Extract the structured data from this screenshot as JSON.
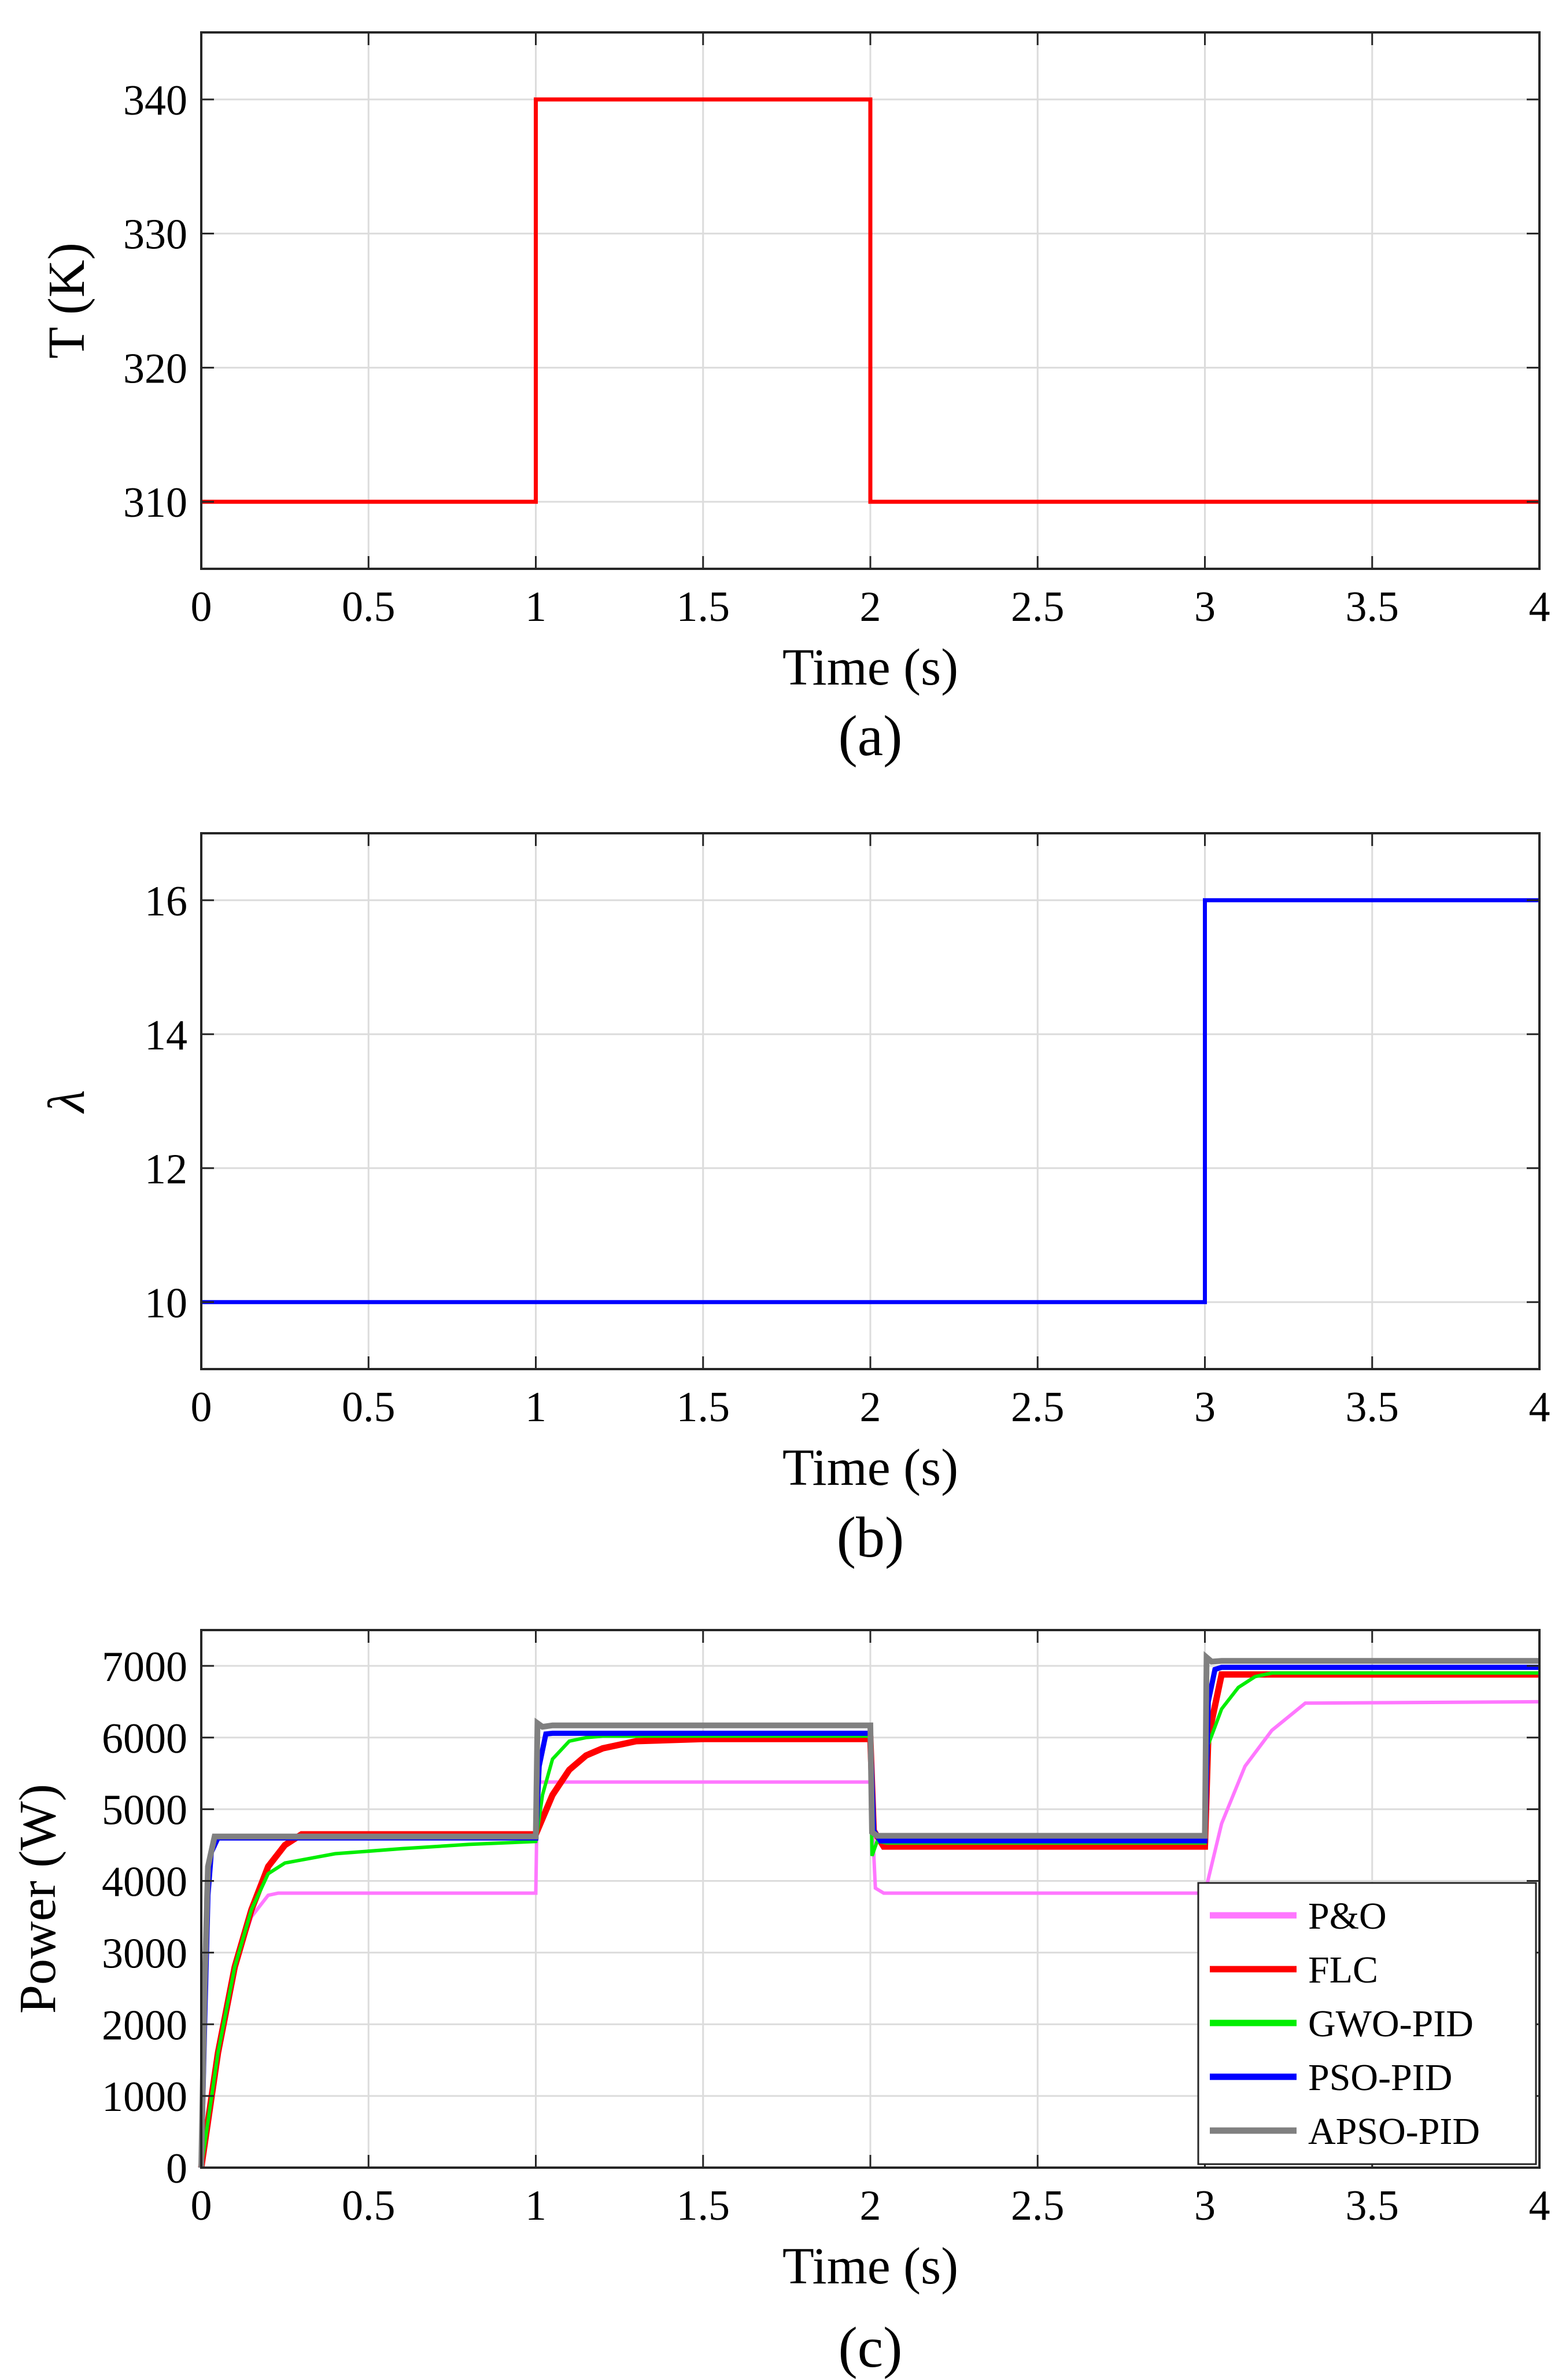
{
  "chart_data": [
    {
      "type": "line",
      "panel": "(a)",
      "caption": "(a)",
      "xlabel": "Time (s)",
      "ylabel": "T (K)",
      "xlim": [
        0,
        4
      ],
      "ylim": [
        305,
        345
      ],
      "xticks": [
        0,
        0.5,
        1,
        1.5,
        2,
        2.5,
        3,
        3.5,
        4
      ],
      "xtick_labels": [
        "0",
        "0.5",
        "1",
        "1.5",
        "2",
        "2.5",
        "3",
        "3.5",
        "4"
      ],
      "yticks": [
        310,
        320,
        330,
        340
      ],
      "ytick_labels": [
        "310",
        "320",
        "330",
        "340"
      ],
      "grid": true,
      "series": [
        {
          "name": "T",
          "color": "#ff0000",
          "x": [
            0,
            1,
            1,
            2,
            2,
            4
          ],
          "y": [
            310,
            310,
            340,
            340,
            310,
            310
          ]
        }
      ]
    },
    {
      "type": "line",
      "panel": "(b)",
      "caption": "(b)",
      "xlabel": "Time (s)",
      "ylabel": "λ",
      "xlim": [
        0,
        4
      ],
      "ylim": [
        9,
        17
      ],
      "xticks": [
        0,
        0.5,
        1,
        1.5,
        2,
        2.5,
        3,
        3.5,
        4
      ],
      "xtick_labels": [
        "0",
        "0.5",
        "1",
        "1.5",
        "2",
        "2.5",
        "3",
        "3.5",
        "4"
      ],
      "yticks": [
        10,
        12,
        14,
        16
      ],
      "ytick_labels": [
        "10",
        "12",
        "14",
        "16"
      ],
      "grid": true,
      "series": [
        {
          "name": "λ",
          "color": "#0000ff",
          "x": [
            0,
            3,
            3,
            4
          ],
          "y": [
            10,
            10,
            16,
            16
          ]
        }
      ]
    },
    {
      "type": "line",
      "panel": "(c)",
      "caption": "(c)",
      "xlabel": "Time (s)",
      "ylabel": "Power (W)",
      "xlim": [
        0,
        4
      ],
      "ylim": [
        0,
        7500
      ],
      "xticks": [
        0,
        0.5,
        1,
        1.5,
        2,
        2.5,
        3,
        3.5,
        4
      ],
      "xtick_labels": [
        "0",
        "0.5",
        "1",
        "1.5",
        "2",
        "2.5",
        "3",
        "3.5",
        "4"
      ],
      "yticks": [
        0,
        1000,
        2000,
        3000,
        4000,
        5000,
        6000,
        7000
      ],
      "ytick_labels": [
        "0",
        "1000",
        "2000",
        "3000",
        "4000",
        "5000",
        "6000",
        "7000"
      ],
      "grid": true,
      "legend_position": "bottom-right",
      "series": [
        {
          "name": "P&O",
          "color": "#ff77ff",
          "x": [
            0,
            0.05,
            0.1,
            0.15,
            0.2,
            0.23,
            1.0,
            1.005,
            1.1,
            1.25,
            2.0,
            2.015,
            2.04,
            3.0,
            3.05,
            3.12,
            3.2,
            3.3,
            4.0
          ],
          "y": [
            0,
            1600,
            2800,
            3500,
            3800,
            3830,
            3830,
            5380,
            5380,
            5380,
            5380,
            3900,
            3830,
            3830,
            4800,
            5600,
            6100,
            6480,
            6500
          ]
        },
        {
          "name": "FLC",
          "color": "#ff0000",
          "x": [
            0,
            0.05,
            0.1,
            0.15,
            0.2,
            0.25,
            0.3,
            1.0,
            1.05,
            1.1,
            1.15,
            1.2,
            1.3,
            1.5,
            2.0,
            2.01,
            2.04,
            3.0,
            3.01,
            3.05,
            4.0
          ],
          "y": [
            0,
            1600,
            2800,
            3600,
            4200,
            4500,
            4650,
            4650,
            5200,
            5550,
            5750,
            5850,
            5950,
            5980,
            5980,
            4700,
            4480,
            4480,
            6000,
            6880,
            6880
          ]
        },
        {
          "name": "GWO-PID",
          "color": "#00ee00",
          "x": [
            0,
            0.05,
            0.1,
            0.15,
            0.2,
            0.25,
            0.4,
            0.6,
            0.8,
            1.0,
            1.02,
            1.05,
            1.1,
            1.15,
            1.2,
            2.0,
            2.005,
            2.02,
            2.05,
            3.0,
            3.01,
            3.05,
            3.1,
            3.15,
            3.2,
            4.0
          ],
          "y": [
            0,
            1600,
            2800,
            3600,
            4100,
            4250,
            4380,
            4450,
            4510,
            4550,
            5200,
            5700,
            5950,
            6000,
            6020,
            6020,
            4350,
            4550,
            4530,
            4530,
            5900,
            6400,
            6700,
            6850,
            6900,
            6900
          ]
        },
        {
          "name": "PSO-PID",
          "color": "#0000ff",
          "x": [
            0,
            0.01,
            0.02,
            0.03,
            0.05,
            0.07,
            1.0,
            1.01,
            1.03,
            1.05,
            2.0,
            2.01,
            2.03,
            3.0,
            3.01,
            3.03,
            3.05,
            4.0
          ],
          "y": [
            0,
            2000,
            3800,
            4400,
            4600,
            4600,
            4600,
            5600,
            6050,
            6060,
            6060,
            4700,
            4560,
            4560,
            6500,
            6950,
            6980,
            6980
          ]
        },
        {
          "name": "APSO-PID",
          "color": "#808080",
          "x": [
            0,
            0.01,
            0.02,
            0.04,
            0.06,
            1.0,
            1.005,
            1.02,
            1.05,
            2.0,
            2.005,
            2.02,
            3.0,
            3.005,
            3.02,
            3.05,
            4.0
          ],
          "y": [
            0,
            2500,
            4200,
            4620,
            4620,
            4620,
            6200,
            6150,
            6170,
            6170,
            4680,
            4630,
            4630,
            7120,
            7060,
            7070,
            7070
          ]
        }
      ]
    }
  ]
}
